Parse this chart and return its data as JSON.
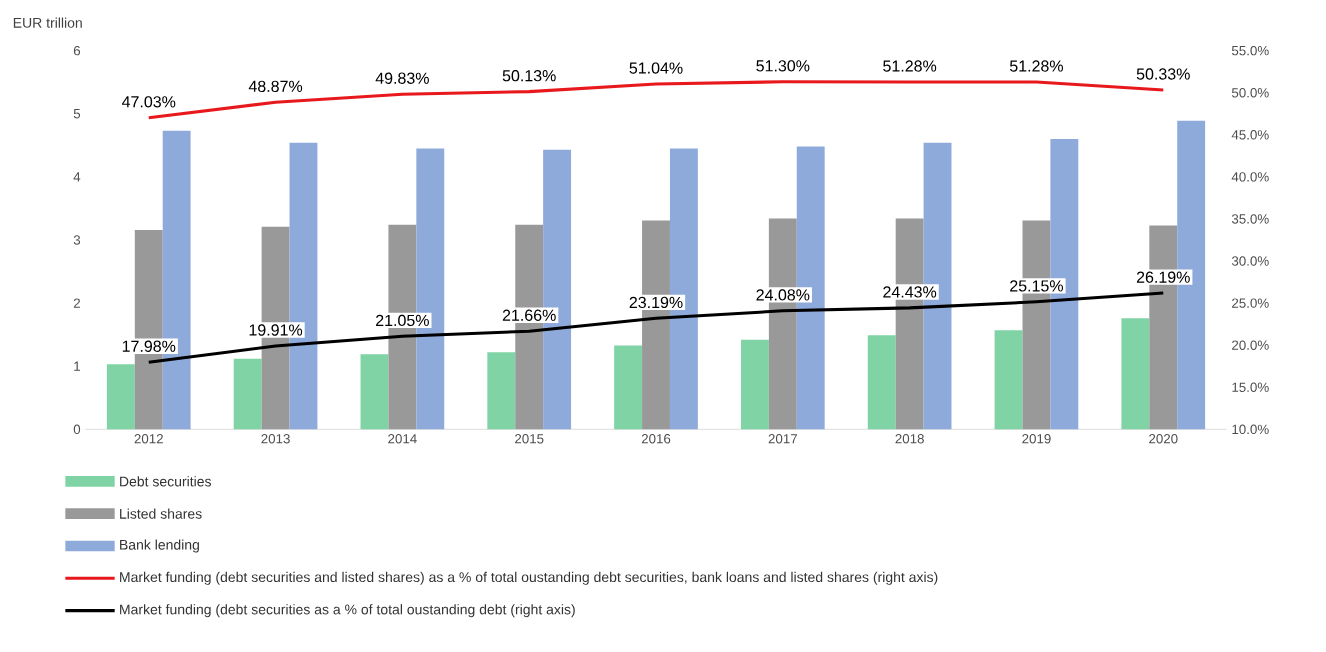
{
  "chart_data": {
    "type": "bar",
    "ylabel": "EUR trillion",
    "categories": [
      "2012",
      "2013",
      "2014",
      "2015",
      "2016",
      "2017",
      "2018",
      "2019",
      "2020"
    ],
    "series": [
      {
        "name": "Debt securities",
        "color": "#7fd3a5",
        "values": [
          1.03,
          1.12,
          1.19,
          1.22,
          1.33,
          1.42,
          1.49,
          1.57,
          1.76
        ]
      },
      {
        "name": "Listed shares",
        "color": "#999999",
        "values": [
          3.16,
          3.21,
          3.24,
          3.24,
          3.31,
          3.34,
          3.34,
          3.31,
          3.23
        ]
      },
      {
        "name": "Bank lending",
        "color": "#8eaadb",
        "values": [
          4.73,
          4.54,
          4.45,
          4.43,
          4.45,
          4.48,
          4.54,
          4.6,
          4.89
        ]
      },
      {
        "name": "Market funding (debt securities and listed shares) as a % of total oustanding debt securities, bank loans and listed shares (right axis)",
        "type": "line",
        "axis": "y2",
        "color": "#e8191c",
        "values": [
          47.03,
          48.87,
          49.83,
          50.13,
          51.04,
          51.3,
          51.28,
          51.28,
          50.33
        ],
        "value_labels": [
          "47.03%",
          "48.87%",
          "49.83%",
          "50.13%",
          "51.04%",
          "51.30%",
          "51.28%",
          "51.28%",
          "50.33%"
        ]
      },
      {
        "name": "Market funding (debt securities as a % of total oustanding debt (right axis)",
        "type": "line",
        "axis": "y2",
        "color": "#000000",
        "values": [
          17.98,
          19.91,
          21.05,
          21.66,
          23.19,
          24.08,
          24.43,
          25.15,
          26.19
        ],
        "value_labels": [
          "17.98%",
          "19.91%",
          "21.05%",
          "21.66%",
          "23.19%",
          "24.08%",
          "24.43%",
          "25.15%",
          "26.19%"
        ]
      }
    ],
    "ylim": [
      0,
      6
    ],
    "yticks": [
      0,
      1,
      2,
      3,
      4,
      5,
      6
    ],
    "y2lim": [
      10,
      55
    ],
    "y2ticks": [
      {
        "value": 10,
        "label": "10.0%"
      },
      {
        "value": 15,
        "label": "15.0%"
      },
      {
        "value": 20,
        "label": "20.0%"
      },
      {
        "value": 25,
        "label": "25.0%"
      },
      {
        "value": 30,
        "label": "30.0%"
      },
      {
        "value": 35,
        "label": "35.0%"
      },
      {
        "value": 40,
        "label": "40.0%"
      },
      {
        "value": 45,
        "label": "45.0%"
      },
      {
        "value": 50,
        "label": "50.0%"
      },
      {
        "value": 55,
        "label": "55.0%"
      }
    ],
    "legend": "bottom"
  }
}
